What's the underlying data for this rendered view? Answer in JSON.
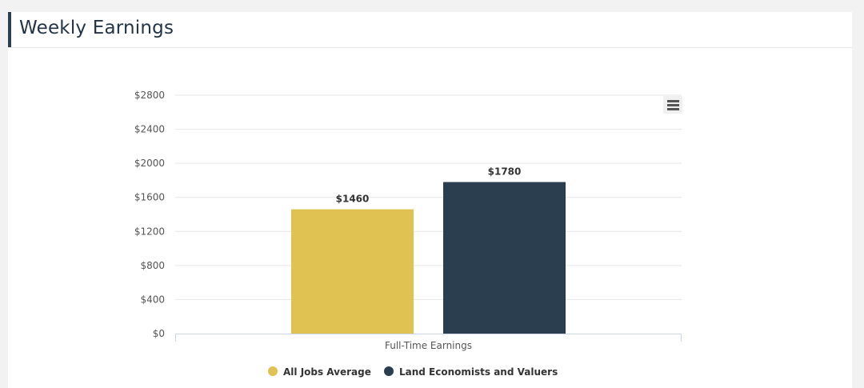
{
  "card": {
    "title": "Weekly Earnings"
  },
  "menu": {
    "icon": "hamburger-menu-icon"
  },
  "colors": {
    "accent": "#2c3e50",
    "all_jobs": "#e0c252",
    "occupation": "#2a3e4f"
  },
  "chart_data": {
    "type": "bar",
    "categories": [
      "Full-Time Earnings"
    ],
    "series": [
      {
        "name": "All Jobs Average",
        "values": [
          1460
        ],
        "label": "$1460",
        "color": "#e0c252"
      },
      {
        "name": "Land Economists and Valuers",
        "values": [
          1780
        ],
        "label": "$1780",
        "color": "#2a3e4f"
      }
    ],
    "ylim": [
      0,
      2800
    ],
    "yticks": [
      0,
      400,
      800,
      1200,
      1600,
      2000,
      2400,
      2800
    ],
    "ytick_labels": [
      "$0",
      "$400",
      "$800",
      "$1200",
      "$1600",
      "$2000",
      "$2400",
      "$2800"
    ],
    "grid": true,
    "legend": "bottom-center",
    "title": "",
    "xlabel": "",
    "ylabel": ""
  }
}
